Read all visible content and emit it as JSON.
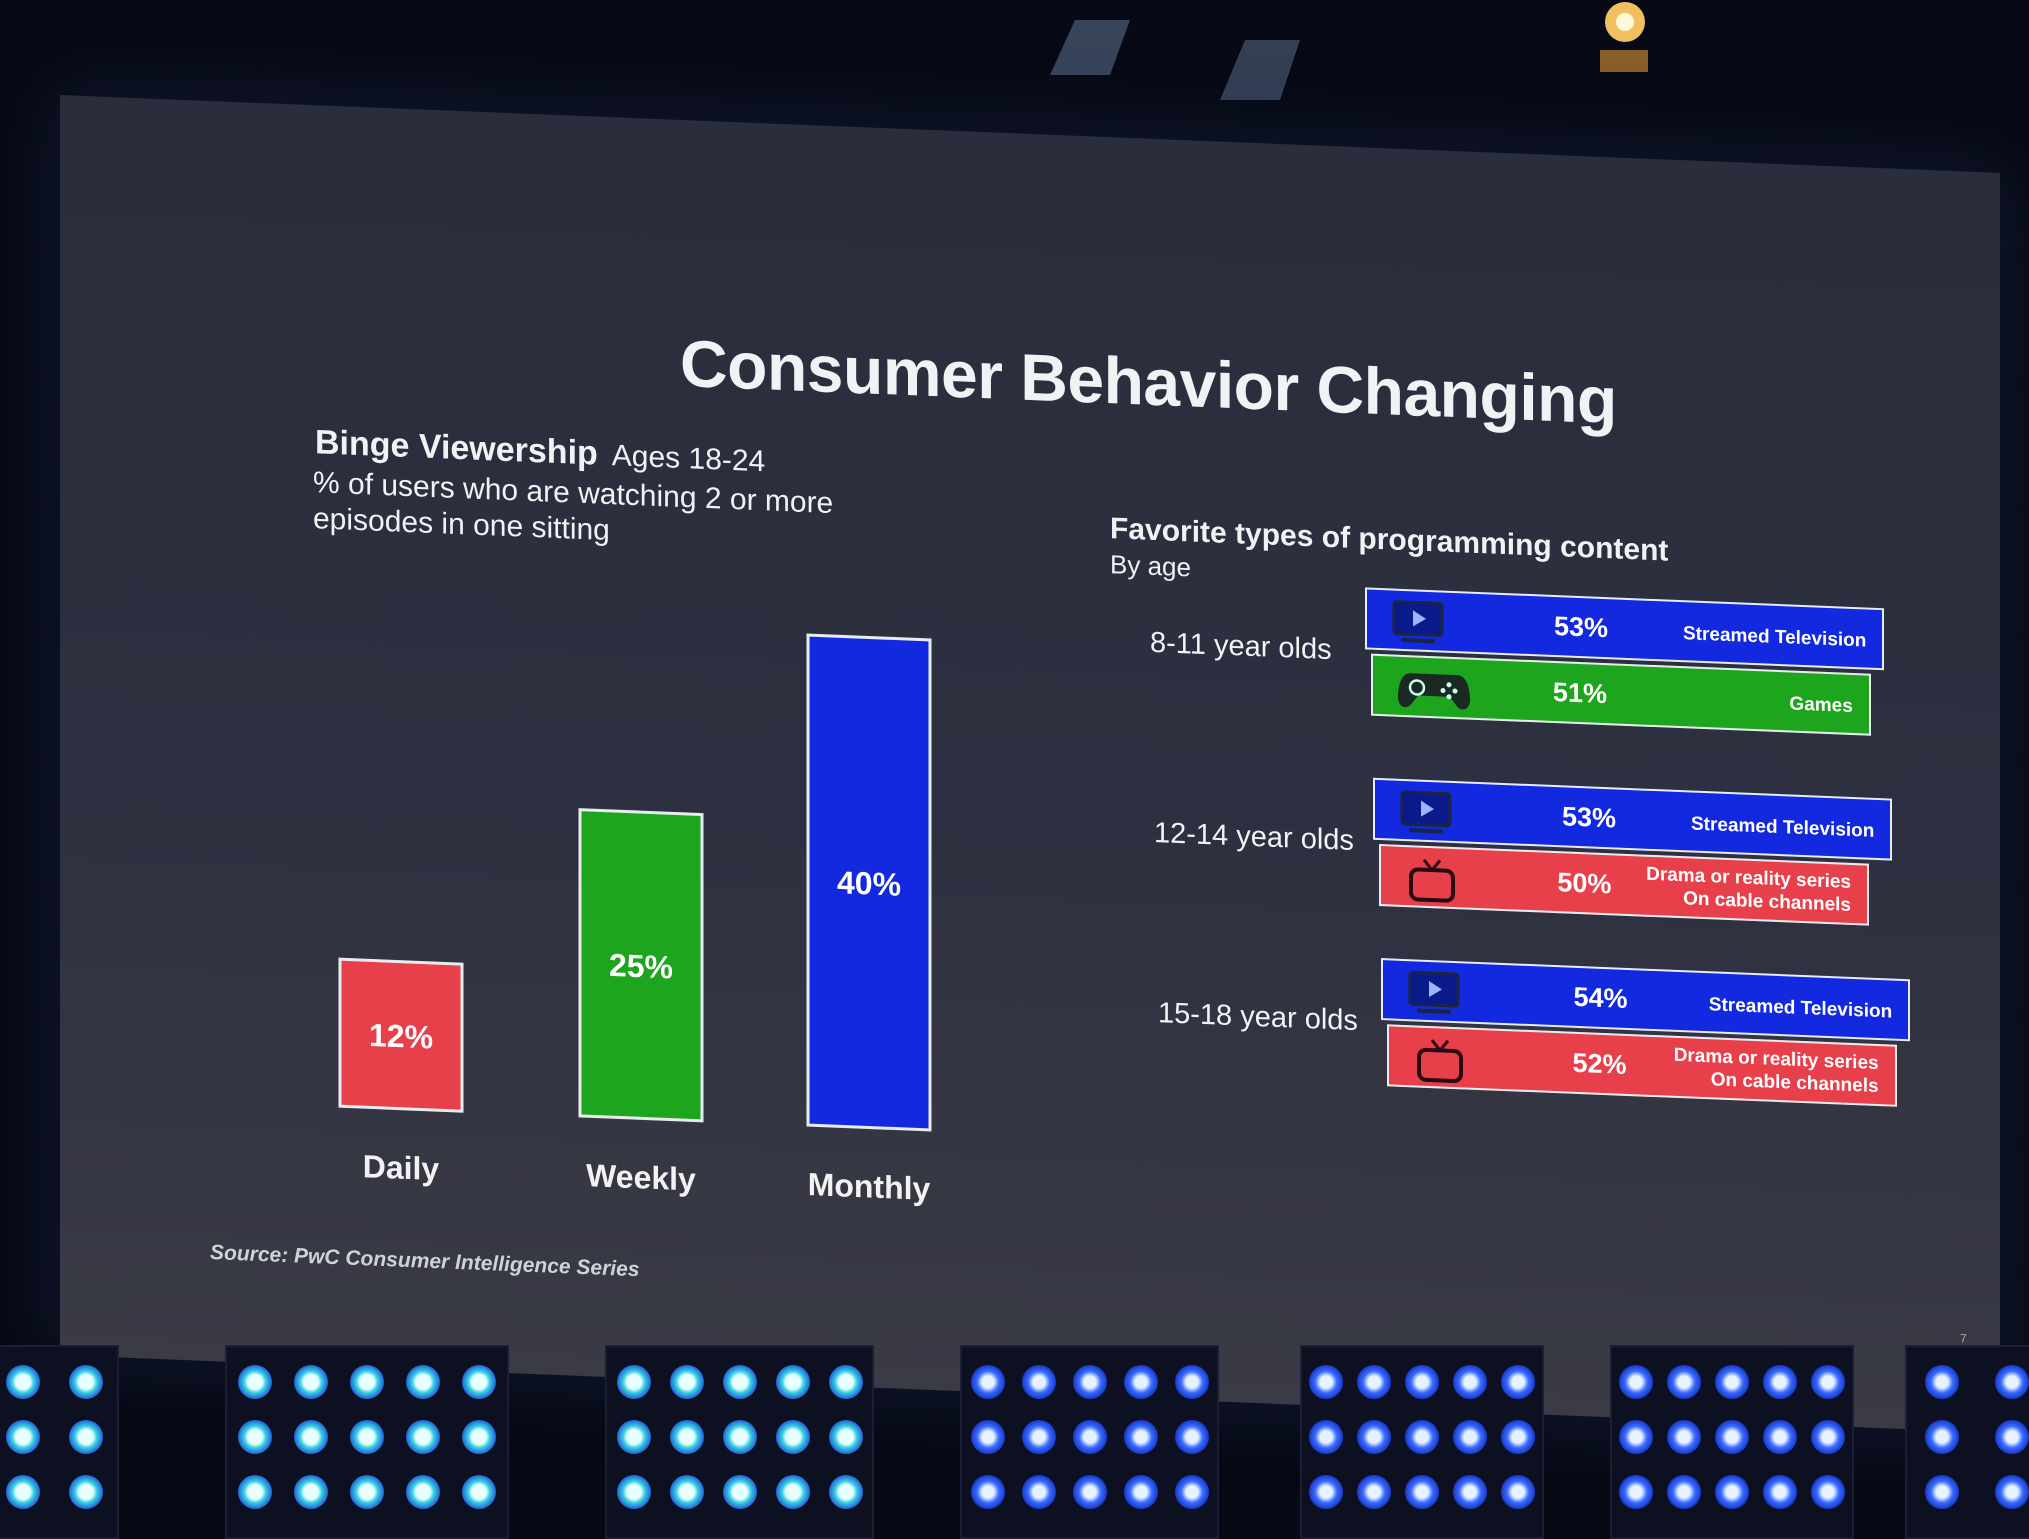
{
  "slide": {
    "title": "Consumer Behavior Changing",
    "source": "Source: PwC Consumer Intelligence Series",
    "page_number": "7"
  },
  "left_panel": {
    "title": "Binge Viewership",
    "ages": "Ages 18-24",
    "subtitle": "% of users who are watching 2 or more episodes in one sitting"
  },
  "right_panel": {
    "title": "Favorite types of programming content",
    "subtitle": "By age"
  },
  "colors": {
    "red": "#e8404a",
    "green": "#1ea51e",
    "blue": "#1329e0"
  },
  "chart_data": [
    {
      "type": "bar",
      "categories": [
        "Daily",
        "Weekly",
        "Monthly"
      ],
      "values": [
        12,
        25,
        40
      ],
      "value_labels": [
        "12%",
        "25%",
        "40%"
      ],
      "bar_colors": [
        "#e8404a",
        "#1ea51e",
        "#1329e0"
      ],
      "title": "Binge Viewership",
      "ylim": [
        0,
        40
      ]
    },
    {
      "type": "bar",
      "orientation": "horizontal",
      "groups": [
        {
          "label": "8-11 year olds",
          "bars": [
            {
              "value": 53,
              "value_label": "53%",
              "label": "Streamed Television",
              "color": "#1329e0",
              "icon": "play-screen-icon"
            },
            {
              "value": 51,
              "value_label": "51%",
              "label": "Games",
              "color": "#1ea51e",
              "icon": "gamepad-icon"
            }
          ]
        },
        {
          "label": "12-14 year olds",
          "bars": [
            {
              "value": 53,
              "value_label": "53%",
              "label": "Streamed Television",
              "color": "#1329e0",
              "icon": "play-screen-icon"
            },
            {
              "value": 50,
              "value_label": "50%",
              "label": "Drama or reality series On cable channels",
              "label_lines": [
                "Drama or reality series",
                "On cable channels"
              ],
              "color": "#e8404a",
              "icon": "tv-icon"
            }
          ]
        },
        {
          "label": "15-18 year olds",
          "bars": [
            {
              "value": 54,
              "value_label": "54%",
              "label": "Streamed Television",
              "color": "#1329e0",
              "icon": "play-screen-icon"
            },
            {
              "value": 52,
              "value_label": "52%",
              "label": "Drama or reality series On cable channels",
              "label_lines": [
                "Drama or reality series",
                "On cable channels"
              ],
              "color": "#e8404a",
              "icon": "tv-icon"
            }
          ]
        }
      ],
      "title": "Favorite types of programming content"
    }
  ]
}
